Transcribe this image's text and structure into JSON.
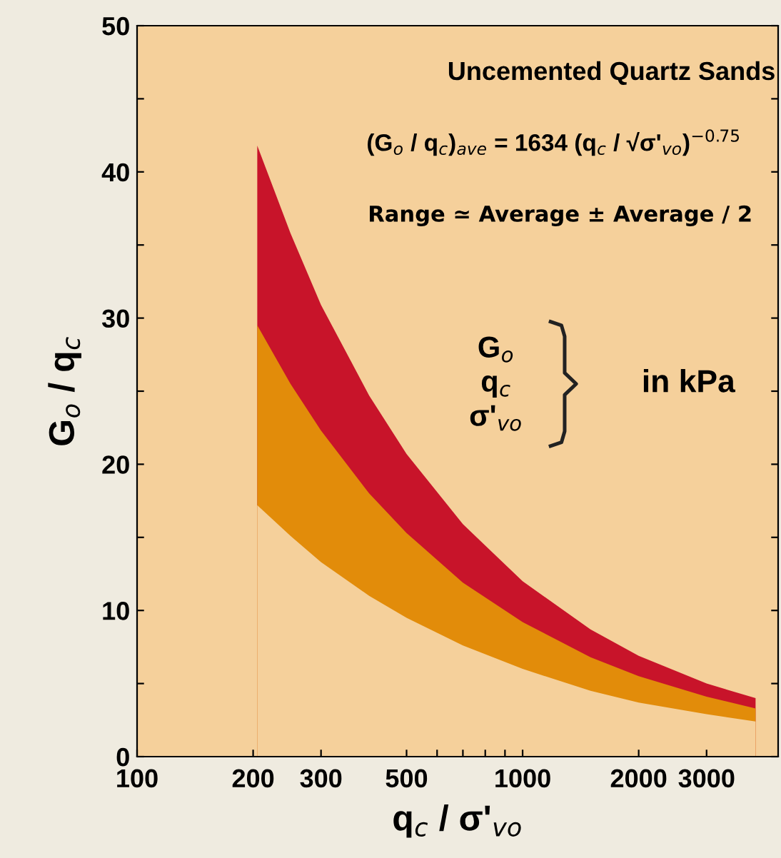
{
  "chart_data": {
    "type": "area",
    "xlabel": "q$_{c}$ / σ'$_{vo}$",
    "ylabel": "G$_{o}$ / q$_{c}$",
    "x": [
      205,
      250,
      300,
      400,
      500,
      700,
      1000,
      1500,
      2000,
      3000,
      4020
    ],
    "series": [
      {
        "color": "#c8142a",
        "values": [
          41.8,
          35.8,
          30.9,
          24.7,
          20.7,
          15.9,
          12.0,
          8.7,
          6.9,
          5.0,
          4.0
        ]
      },
      {
        "color": "#e28c0a",
        "values": [
          29.5,
          25.5,
          22.3,
          18.0,
          15.3,
          11.9,
          9.2,
          6.8,
          5.5,
          4.1,
          3.3
        ]
      },
      {
        "color": "#f5d09b",
        "values": [
          17.2,
          15.1,
          13.3,
          11.0,
          9.5,
          7.6,
          6.0,
          4.5,
          3.7,
          2.9,
          2.4
        ]
      }
    ],
    "log": "x",
    "xlim": [
      100,
      4600
    ],
    "ylim": [
      0,
      50
    ],
    "xticks": [
      100,
      200,
      300,
      500,
      {
        "value": 600,
        "label": null
      },
      {
        "value": 700,
        "label": null
      },
      {
        "value": 800,
        "label": null
      },
      {
        "value": 900,
        "label": null
      },
      1000,
      2000,
      3000
    ],
    "yticks": [
      0,
      {
        "value": 5,
        "label": null
      },
      10,
      {
        "value": 15,
        "label": null
      },
      20,
      {
        "value": 25,
        "label": null
      },
      30,
      {
        "value": 35,
        "label": null
      },
      40,
      {
        "value": 45,
        "label": null
      },
      50
    ],
    "grid": false,
    "annotations": [
      "Uncemented Quartz Sands",
      "(G$_{o}$ / q$_{c}$)$_{ave}$ = 1634 (q$_{c}$ / √σ'$_{vo}$)$^{−0.75}$",
      "Range ≃ Average ± Average / 2",
      "G$_{o}$\nq$_{c}$\nσ'$_{vo}$",
      "in kPa"
    ]
  }
}
